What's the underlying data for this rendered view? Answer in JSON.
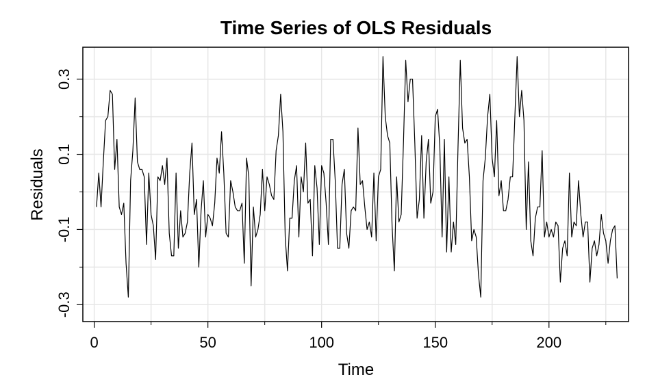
{
  "chart_data": {
    "type": "line",
    "title": "Time Series of OLS Residuals",
    "xlabel": "Time",
    "ylabel": "Residuals",
    "xlim": [
      -5,
      235
    ],
    "ylim": [
      -0.345,
      0.385
    ],
    "x_ticks": [
      0,
      50,
      100,
      150,
      200
    ],
    "x_tick_labels": [
      "0",
      "50",
      "100",
      "150",
      "200"
    ],
    "x_minor_ticks": [
      25,
      75,
      125,
      175,
      225
    ],
    "y_ticks": [
      -0.3,
      -0.1,
      0.1,
      0.3
    ],
    "y_tick_labels": [
      "-0.3",
      "-0.1",
      "0.1",
      "0.3"
    ],
    "y_minor_ticks": [
      -0.2,
      0.0,
      0.2
    ],
    "grid": true,
    "colors": {
      "line": "#000000",
      "grid": "#e6e6e6",
      "background": "#ffffff"
    },
    "series": [
      {
        "values": [
          -0.04,
          0.05,
          -0.04,
          0.08,
          0.19,
          0.2,
          0.27,
          0.26,
          0.06,
          0.14,
          -0.04,
          -0.06,
          -0.03,
          -0.19,
          -0.28,
          0.03,
          0.11,
          0.25,
          0.08,
          0.06,
          0.06,
          0.04,
          -0.14,
          0.05,
          -0.06,
          -0.09,
          -0.18,
          0.04,
          0.03,
          0.07,
          0.02,
          0.09,
          -0.11,
          -0.17,
          -0.17,
          0.05,
          -0.15,
          -0.05,
          -0.12,
          -0.11,
          -0.08,
          0.05,
          0.13,
          -0.06,
          -0.02,
          -0.2,
          -0.05,
          0.03,
          -0.12,
          -0.06,
          -0.07,
          -0.09,
          -0.03,
          0.09,
          0.05,
          0.16,
          0.05,
          -0.11,
          -0.12,
          0.03,
          0.0,
          -0.04,
          -0.05,
          -0.05,
          -0.03,
          -0.19,
          0.09,
          0.04,
          -0.25,
          -0.04,
          -0.12,
          -0.1,
          -0.06,
          0.06,
          -0.05,
          0.04,
          0.02,
          -0.01,
          -0.02,
          0.11,
          0.15,
          0.26,
          0.16,
          -0.12,
          -0.21,
          -0.07,
          -0.07,
          0.03,
          0.07,
          -0.12,
          0.04,
          0.0,
          0.13,
          -0.03,
          -0.02,
          -0.17,
          0.07,
          0.01,
          -0.14,
          0.07,
          0.05,
          -0.03,
          -0.14,
          0.14,
          0.14,
          0.03,
          -0.15,
          -0.15,
          0.02,
          0.06,
          -0.11,
          -0.15,
          -0.05,
          -0.04,
          -0.05,
          0.17,
          0.02,
          0.03,
          -0.04,
          -0.1,
          -0.08,
          -0.12,
          0.05,
          -0.13,
          0.04,
          0.06,
          0.36,
          0.2,
          0.15,
          0.13,
          -0.09,
          -0.21,
          0.04,
          -0.08,
          -0.06,
          0.13,
          0.35,
          0.24,
          0.3,
          0.3,
          0.13,
          -0.07,
          -0.02,
          0.15,
          -0.07,
          0.08,
          0.14,
          -0.03,
          0.0,
          0.2,
          0.22,
          0.12,
          -0.12,
          0.14,
          -0.16,
          0.04,
          -0.16,
          -0.08,
          -0.14,
          0.12,
          0.35,
          0.17,
          0.13,
          0.14,
          0.04,
          -0.13,
          -0.1,
          -0.12,
          -0.22,
          -0.28,
          0.03,
          0.09,
          0.2,
          0.26,
          0.09,
          0.04,
          0.19,
          -0.01,
          0.03,
          -0.05,
          -0.05,
          -0.02,
          0.04,
          0.04,
          0.2,
          0.36,
          0.2,
          0.27,
          0.19,
          -0.1,
          0.08,
          -0.13,
          -0.17,
          -0.07,
          -0.04,
          -0.04,
          0.11,
          -0.12,
          -0.08,
          -0.12,
          -0.1,
          -0.12,
          -0.08,
          -0.09,
          -0.24,
          -0.15,
          -0.13,
          -0.17,
          0.05,
          -0.12,
          -0.08,
          -0.09,
          0.03,
          -0.06,
          -0.12,
          -0.08,
          -0.08,
          -0.24,
          -0.15,
          -0.13,
          -0.17,
          -0.14,
          -0.06,
          -0.11,
          -0.13,
          -0.19,
          -0.13,
          -0.1,
          -0.09,
          -0.23
        ]
      }
    ]
  }
}
